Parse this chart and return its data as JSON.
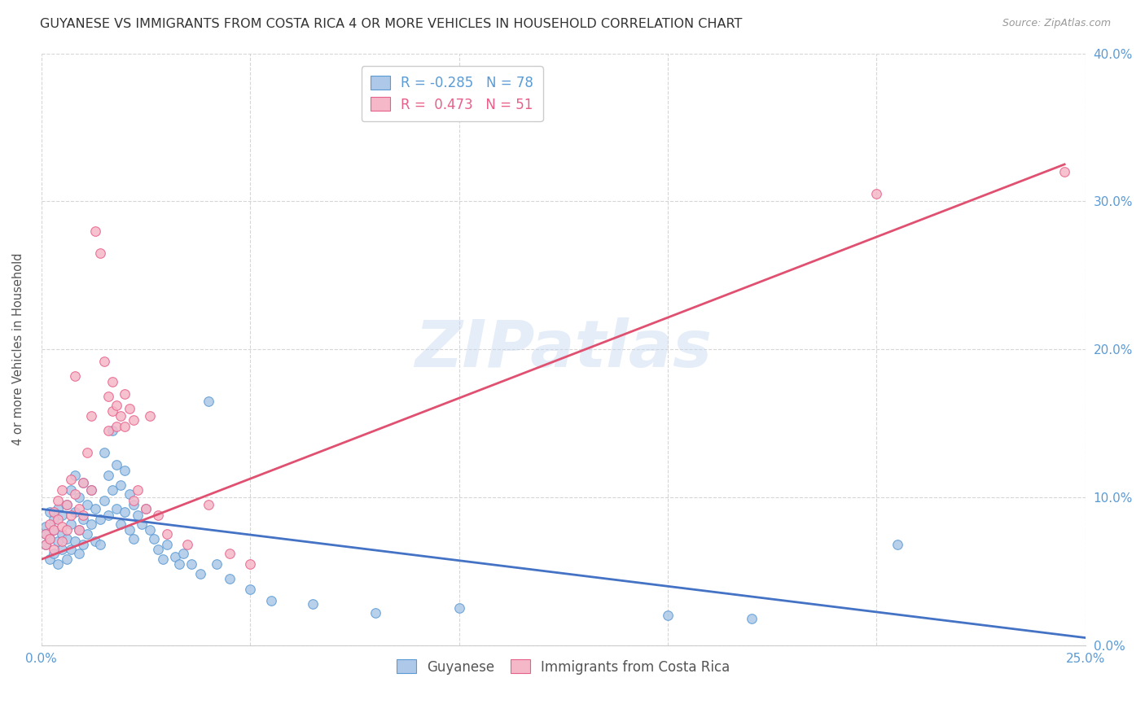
{
  "title": "GUYANESE VS IMMIGRANTS FROM COSTA RICA 4 OR MORE VEHICLES IN HOUSEHOLD CORRELATION CHART",
  "source": "Source: ZipAtlas.com",
  "ylabel": "4 or more Vehicles in Household",
  "xlim": [
    0.0,
    0.25
  ],
  "ylim": [
    0.0,
    0.4
  ],
  "xticks": [
    0.0,
    0.05,
    0.1,
    0.15,
    0.2,
    0.25
  ],
  "yticks": [
    0.0,
    0.1,
    0.2,
    0.3,
    0.4
  ],
  "background_color": "#ffffff",
  "watermark_text": "ZIPatlas",
  "legend_labels": [
    "Guyanese",
    "Immigrants from Costa Rica"
  ],
  "blue_fill": "#adc8e8",
  "pink_fill": "#f5b8c8",
  "blue_edge": "#5b9bd5",
  "pink_edge": "#e8608a",
  "blue_line": "#4472c4",
  "pink_line": "#e05070",
  "R_blue": -0.285,
  "N_blue": 78,
  "R_pink": 0.473,
  "N_pink": 51,
  "blue_scatter": [
    [
      0.001,
      0.08
    ],
    [
      0.001,
      0.068
    ],
    [
      0.001,
      0.075
    ],
    [
      0.002,
      0.09
    ],
    [
      0.002,
      0.058
    ],
    [
      0.002,
      0.072
    ],
    [
      0.003,
      0.085
    ],
    [
      0.003,
      0.062
    ],
    [
      0.003,
      0.078
    ],
    [
      0.004,
      0.092
    ],
    [
      0.004,
      0.07
    ],
    [
      0.004,
      0.055
    ],
    [
      0.005,
      0.088
    ],
    [
      0.005,
      0.065
    ],
    [
      0.005,
      0.075
    ],
    [
      0.006,
      0.095
    ],
    [
      0.006,
      0.072
    ],
    [
      0.006,
      0.058
    ],
    [
      0.007,
      0.105
    ],
    [
      0.007,
      0.082
    ],
    [
      0.007,
      0.065
    ],
    [
      0.008,
      0.115
    ],
    [
      0.008,
      0.09
    ],
    [
      0.008,
      0.07
    ],
    [
      0.009,
      0.1
    ],
    [
      0.009,
      0.078
    ],
    [
      0.009,
      0.062
    ],
    [
      0.01,
      0.11
    ],
    [
      0.01,
      0.085
    ],
    [
      0.01,
      0.068
    ],
    [
      0.011,
      0.095
    ],
    [
      0.011,
      0.075
    ],
    [
      0.012,
      0.105
    ],
    [
      0.012,
      0.082
    ],
    [
      0.013,
      0.092
    ],
    [
      0.013,
      0.07
    ],
    [
      0.014,
      0.085
    ],
    [
      0.014,
      0.068
    ],
    [
      0.015,
      0.13
    ],
    [
      0.015,
      0.098
    ],
    [
      0.016,
      0.115
    ],
    [
      0.016,
      0.088
    ],
    [
      0.017,
      0.145
    ],
    [
      0.017,
      0.105
    ],
    [
      0.018,
      0.122
    ],
    [
      0.018,
      0.092
    ],
    [
      0.019,
      0.108
    ],
    [
      0.019,
      0.082
    ],
    [
      0.02,
      0.118
    ],
    [
      0.02,
      0.09
    ],
    [
      0.021,
      0.102
    ],
    [
      0.021,
      0.078
    ],
    [
      0.022,
      0.095
    ],
    [
      0.022,
      0.072
    ],
    [
      0.023,
      0.088
    ],
    [
      0.024,
      0.082
    ],
    [
      0.025,
      0.092
    ],
    [
      0.026,
      0.078
    ],
    [
      0.027,
      0.072
    ],
    [
      0.028,
      0.065
    ],
    [
      0.029,
      0.058
    ],
    [
      0.03,
      0.068
    ],
    [
      0.032,
      0.06
    ],
    [
      0.033,
      0.055
    ],
    [
      0.034,
      0.062
    ],
    [
      0.036,
      0.055
    ],
    [
      0.038,
      0.048
    ],
    [
      0.04,
      0.165
    ],
    [
      0.042,
      0.055
    ],
    [
      0.045,
      0.045
    ],
    [
      0.05,
      0.038
    ],
    [
      0.055,
      0.03
    ],
    [
      0.065,
      0.028
    ],
    [
      0.08,
      0.022
    ],
    [
      0.1,
      0.025
    ],
    [
      0.15,
      0.02
    ],
    [
      0.17,
      0.018
    ],
    [
      0.205,
      0.068
    ]
  ],
  "pink_scatter": [
    [
      0.001,
      0.075
    ],
    [
      0.001,
      0.068
    ],
    [
      0.002,
      0.082
    ],
    [
      0.002,
      0.072
    ],
    [
      0.003,
      0.09
    ],
    [
      0.003,
      0.078
    ],
    [
      0.003,
      0.065
    ],
    [
      0.004,
      0.098
    ],
    [
      0.004,
      0.085
    ],
    [
      0.005,
      0.105
    ],
    [
      0.005,
      0.08
    ],
    [
      0.005,
      0.07
    ],
    [
      0.006,
      0.095
    ],
    [
      0.006,
      0.078
    ],
    [
      0.007,
      0.112
    ],
    [
      0.007,
      0.088
    ],
    [
      0.008,
      0.102
    ],
    [
      0.008,
      0.182
    ],
    [
      0.009,
      0.092
    ],
    [
      0.009,
      0.078
    ],
    [
      0.01,
      0.11
    ],
    [
      0.01,
      0.088
    ],
    [
      0.011,
      0.13
    ],
    [
      0.012,
      0.105
    ],
    [
      0.012,
      0.155
    ],
    [
      0.013,
      0.28
    ],
    [
      0.014,
      0.265
    ],
    [
      0.015,
      0.192
    ],
    [
      0.016,
      0.168
    ],
    [
      0.016,
      0.145
    ],
    [
      0.017,
      0.178
    ],
    [
      0.017,
      0.158
    ],
    [
      0.018,
      0.162
    ],
    [
      0.018,
      0.148
    ],
    [
      0.019,
      0.155
    ],
    [
      0.02,
      0.17
    ],
    [
      0.02,
      0.148
    ],
    [
      0.021,
      0.16
    ],
    [
      0.022,
      0.152
    ],
    [
      0.022,
      0.098
    ],
    [
      0.023,
      0.105
    ],
    [
      0.025,
      0.092
    ],
    [
      0.026,
      0.155
    ],
    [
      0.028,
      0.088
    ],
    [
      0.03,
      0.075
    ],
    [
      0.035,
      0.068
    ],
    [
      0.04,
      0.095
    ],
    [
      0.045,
      0.062
    ],
    [
      0.05,
      0.055
    ],
    [
      0.2,
      0.305
    ],
    [
      0.245,
      0.32
    ]
  ],
  "blue_trend": [
    0.0,
    0.092,
    0.25,
    0.005
  ],
  "pink_trend": [
    0.0,
    0.058,
    0.245,
    0.325
  ]
}
